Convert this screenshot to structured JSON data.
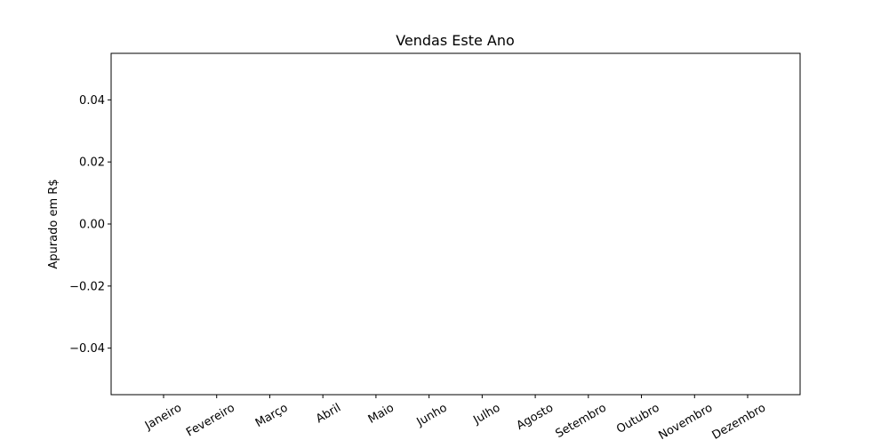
{
  "chart_data": {
    "type": "bar",
    "title": "Vendas Este Ano",
    "xlabel": "",
    "ylabel": "Apurado em R$",
    "categories": [
      "Janeiro",
      "Fevereiro",
      "Março",
      "Abril",
      "Maio",
      "Junho",
      "Julho",
      "Agosto",
      "Setembro",
      "Outubro",
      "Novembro",
      "Dezembro"
    ],
    "values": [
      0,
      0,
      0,
      0,
      0,
      0,
      0,
      0,
      0,
      0,
      0,
      0
    ],
    "ylim": [
      -0.055,
      0.055
    ],
    "yticks": [
      -0.04,
      -0.02,
      0.0,
      0.02,
      0.04
    ],
    "ytick_labels": [
      "−0.04",
      "−0.02",
      "0.00",
      "0.02",
      "0.04"
    ],
    "grid": false,
    "legend": "none"
  }
}
